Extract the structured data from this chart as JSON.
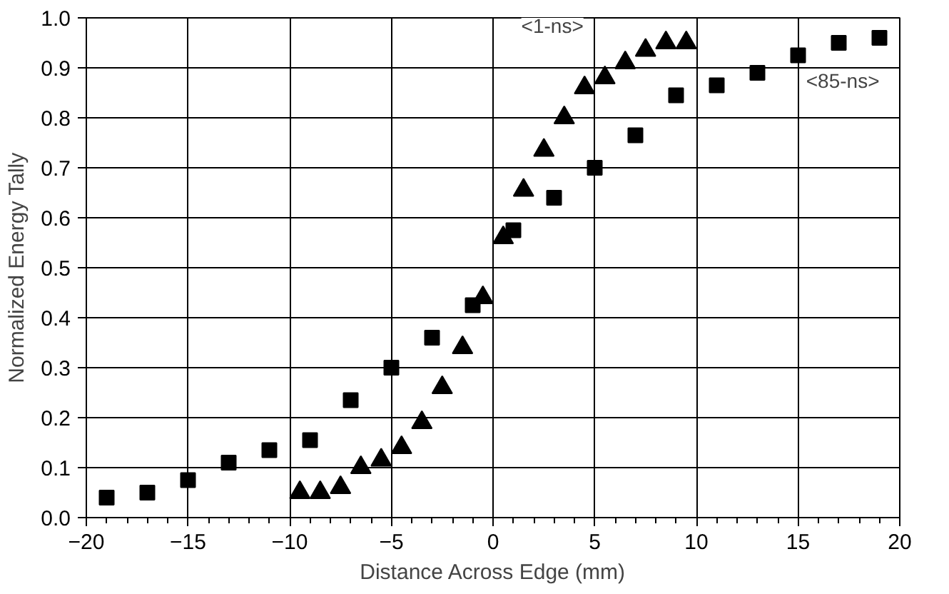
{
  "chart_data": {
    "type": "scatter",
    "xlabel": "Distance Across Edge (mm)",
    "ylabel": "Normalized Energy Tally",
    "xlim": [
      -20,
      20
    ],
    "ylim": [
      0,
      1
    ],
    "xticks": [
      -20,
      -15,
      -10,
      -5,
      0,
      5,
      10,
      15,
      20
    ],
    "yticks": [
      {
        "value": 0,
        "label": "0.0"
      },
      0.1,
      0.2,
      0.3,
      0.4,
      0.5,
      0.6,
      0.7,
      0.8,
      0.9,
      {
        "value": 1,
        "label": "1.0"
      }
    ],
    "grid": true,
    "series": [
      {
        "name": "<85-ns>",
        "color": "#000000",
        "marker": "square",
        "x": [
          -19,
          -17,
          -15,
          -13,
          -11,
          -9,
          -7,
          -5,
          -3,
          -1,
          0.5,
          1,
          3,
          5,
          7,
          9,
          11,
          13,
          15,
          17,
          19
        ],
        "values": [
          0.04,
          0.05,
          0.075,
          0.11,
          0.135,
          0.155,
          0.235,
          0.3,
          0.36,
          0.425,
          null,
          0.575,
          0.64,
          0.7,
          0.765,
          0.845,
          0.865,
          0.89,
          0.925,
          0.95,
          0.96
        ]
      },
      {
        "name": "<1-ns>",
        "color": "#000000",
        "marker": "triangle",
        "x": [
          -9.5,
          -8.5,
          -7.5,
          -6.5,
          -5.5,
          -4.5,
          -3.5,
          -2.5,
          -1.5,
          -0.5,
          0.5,
          1.5,
          2.5,
          3.5,
          4.5,
          5.5,
          6.5,
          7.5,
          8.5,
          9.5
        ],
        "values": [
          0.05,
          0.05,
          0.06,
          0.1,
          0.115,
          0.14,
          0.19,
          0.26,
          0.34,
          0.44,
          0.56,
          0.655,
          0.735,
          0.8,
          0.86,
          0.88,
          0.91,
          0.935,
          0.95,
          0.95
        ]
      }
    ]
  }
}
